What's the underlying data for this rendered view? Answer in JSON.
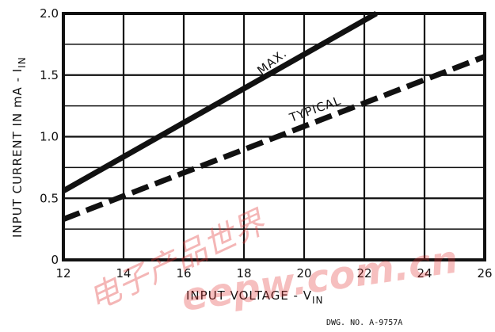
{
  "chart_data": {
    "type": "line",
    "xlabel": "INPUT VOLTAGE - V",
    "xlabel_sub": "IN",
    "ylabel": "INPUT CURRENT IN mA - I",
    "ylabel_sub": "IN",
    "xlim": [
      12,
      26
    ],
    "ylim": [
      0,
      2.0
    ],
    "xticks": [
      12,
      14,
      16,
      18,
      20,
      22,
      24,
      26
    ],
    "xtick_labels": [
      "12",
      "14",
      "16",
      "18",
      "20",
      "22",
      "24",
      "26"
    ],
    "yticks": [
      0,
      0.5,
      1.0,
      1.5,
      2.0
    ],
    "ytick_labels": [
      "0",
      "0.5",
      "1.0",
      "1.5",
      "2.0"
    ],
    "x_grid_step": 2,
    "y_grid_step": 0.25,
    "grid": true,
    "series": [
      {
        "name": "MAX.",
        "style": "solid",
        "color": "#111111",
        "x": [
          12,
          22.4
        ],
        "y": [
          0.56,
          2.0
        ]
      },
      {
        "name": "TYPICAL",
        "style": "dashed",
        "color": "#111111",
        "x": [
          12,
          26
        ],
        "y": [
          0.33,
          1.65
        ]
      }
    ]
  },
  "drawing_number": "DWG. NO. A-9757A",
  "watermark": {
    "chinese": "电子产品世界",
    "english": "eepw.com.cn"
  }
}
